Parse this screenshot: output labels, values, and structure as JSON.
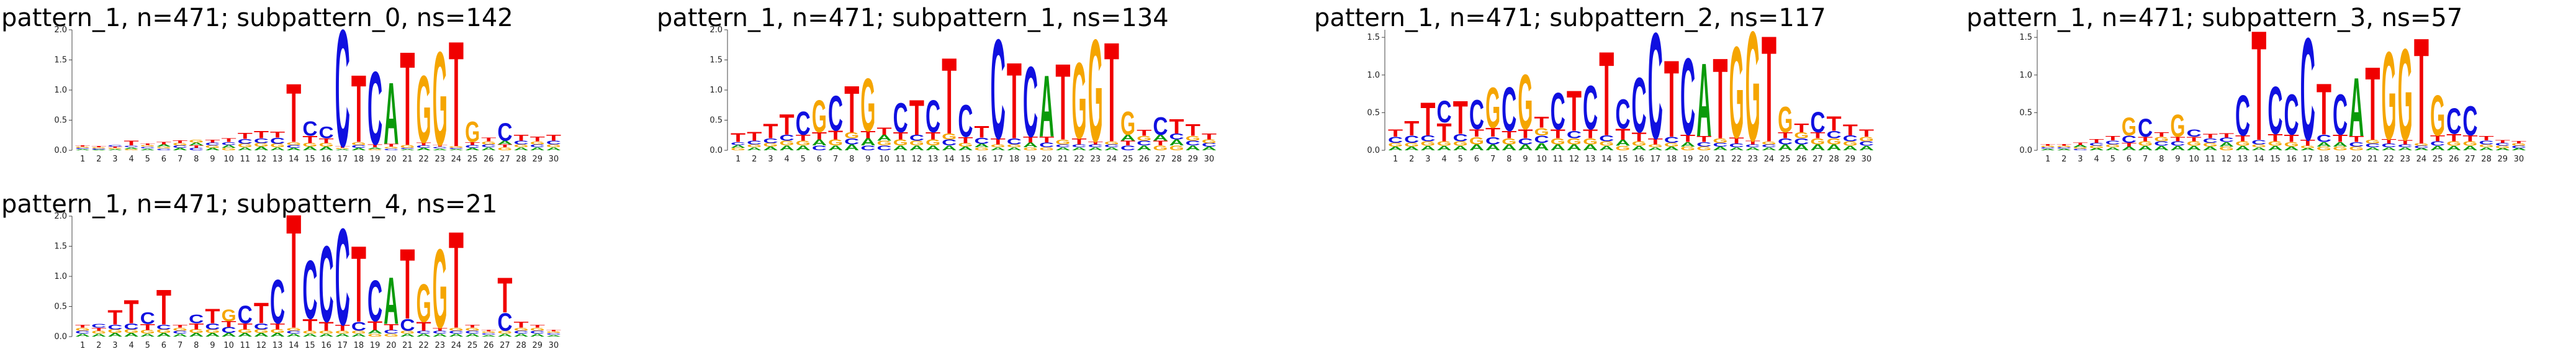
{
  "chart_data": [
    {
      "type": "logo",
      "title": "pattern_1, n=471; subpattern_0, ns=142",
      "categories": [
        "1",
        "2",
        "3",
        "4",
        "5",
        "6",
        "7",
        "8",
        "9",
        "10",
        "11",
        "12",
        "13",
        "14",
        "15",
        "16",
        "17",
        "18",
        "19",
        "20",
        "21",
        "22",
        "23",
        "24",
        "25",
        "26",
        "27",
        "28",
        "29",
        "30"
      ],
      "ylim": [
        0,
        2
      ],
      "yticks": [
        {
          "value": 0,
          "label": "0.0"
        },
        {
          "value": 0.5,
          "label": "0.5"
        },
        {
          "value": 1,
          "label": "1.0"
        },
        {
          "value": 1.5,
          "label": "1.5"
        },
        {
          "value": 2,
          "label": "2.0"
        }
      ],
      "series": [
        {
          "name": "A",
          "color": "#0a9a0a",
          "values": [
            0.02,
            0.01,
            0.02,
            0.03,
            0.03,
            0.04,
            0.04,
            0.05,
            0.04,
            0.05,
            0.05,
            0.06,
            0.05,
            0.04,
            0.06,
            0.06,
            0.02,
            0.04,
            0.03,
            1.05,
            0.02,
            0.04,
            0.03,
            0.02,
            0.04,
            0.05,
            0.06,
            0.05,
            0.05,
            0.05
          ]
        },
        {
          "name": "C",
          "color": "#1010e0",
          "values": [
            0.02,
            0.02,
            0.03,
            0.03,
            0.03,
            0.03,
            0.04,
            0.04,
            0.05,
            0.05,
            0.08,
            0.08,
            0.1,
            0.05,
            0.25,
            0.2,
            2.0,
            0.05,
            1.25,
            0.03,
            0.02,
            0.04,
            0.03,
            0.02,
            0.05,
            0.05,
            0.3,
            0.06,
            0.05,
            0.06
          ]
        },
        {
          "name": "G",
          "color": "#f5a500",
          "values": [
            0.02,
            0.02,
            0.02,
            0.02,
            0.03,
            0.03,
            0.04,
            0.05,
            0.04,
            0.04,
            0.06,
            0.06,
            0.06,
            0.05,
            0.06,
            0.06,
            0.02,
            0.05,
            0.02,
            0.03,
            0.05,
            1.15,
            1.6,
            0.03,
            0.35,
            0.05,
            0.05,
            0.05,
            0.05,
            0.05
          ]
        },
        {
          "name": "T",
          "color": "#f00000",
          "values": [
            0.02,
            0.02,
            0.02,
            0.08,
            0.03,
            0.04,
            0.05,
            0.04,
            0.05,
            0.06,
            0.1,
            0.12,
            0.1,
            1.0,
            0.12,
            0.08,
            0.03,
            1.15,
            0.05,
            0.05,
            1.6,
            0.05,
            0.03,
            1.8,
            0.05,
            0.06,
            0.05,
            0.1,
            0.08,
            0.1
          ]
        }
      ]
    },
    {
      "type": "logo",
      "title": "pattern_1, n=471; subpattern_1, ns=134",
      "categories": [
        "1",
        "2",
        "3",
        "4",
        "5",
        "6",
        "7",
        "8",
        "9",
        "10",
        "11",
        "12",
        "13",
        "14",
        "15",
        "16",
        "17",
        "18",
        "19",
        "20",
        "21",
        "22",
        "23",
        "24",
        "25",
        "26",
        "27",
        "28",
        "29",
        "30"
      ],
      "ylim": [
        0,
        2
      ],
      "yticks": [
        {
          "value": 0,
          "label": "0.0"
        },
        {
          "value": 0.5,
          "label": "0.5"
        },
        {
          "value": 1,
          "label": "1.0"
        },
        {
          "value": 1.5,
          "label": "1.5"
        },
        {
          "value": 2,
          "label": "2.0"
        }
      ],
      "series": [
        {
          "name": "A",
          "color": "#0a9a0a",
          "values": [
            0.05,
            0.05,
            0.06,
            0.08,
            0.08,
            0.1,
            0.08,
            0.1,
            0.12,
            0.1,
            0.08,
            0.08,
            0.08,
            0.08,
            0.06,
            0.06,
            0.05,
            0.05,
            0.08,
            1.05,
            0.05,
            0.05,
            0.05,
            0.05,
            0.1,
            0.08,
            0.1,
            0.1,
            0.08,
            0.06
          ]
        },
        {
          "name": "C",
          "color": "#1010e0",
          "values": [
            0.05,
            0.06,
            0.08,
            0.1,
            0.4,
            0.08,
            0.6,
            0.1,
            0.08,
            0.08,
            0.5,
            0.1,
            0.55,
            0.1,
            0.55,
            0.1,
            1.7,
            0.1,
            1.2,
            0.08,
            0.05,
            0.05,
            0.05,
            0.05,
            0.08,
            0.08,
            0.3,
            0.1,
            0.08,
            0.06
          ]
        },
        {
          "name": "G",
          "color": "#f5a500",
          "values": [
            0.04,
            0.05,
            0.06,
            0.08,
            0.08,
            0.55,
            0.1,
            0.1,
            0.9,
            0.08,
            0.1,
            0.08,
            0.1,
            0.1,
            0.06,
            0.05,
            0.05,
            0.05,
            0.05,
            0.05,
            0.08,
            1.3,
            1.75,
            0.05,
            0.4,
            0.08,
            0.08,
            0.08,
            0.08,
            0.06
          ]
        },
        {
          "name": "T",
          "color": "#f00000",
          "values": [
            0.15,
            0.15,
            0.25,
            0.35,
            0.1,
            0.12,
            0.15,
            0.8,
            0.12,
            0.12,
            0.12,
            0.6,
            0.12,
            1.3,
            0.1,
            0.2,
            0.1,
            1.3,
            0.1,
            0.1,
            1.3,
            0.1,
            0.05,
            1.7,
            0.08,
            0.1,
            0.08,
            0.25,
            0.2,
            0.1
          ]
        }
      ]
    },
    {
      "type": "logo",
      "title": "pattern_1, n=471; subpattern_2, ns=117",
      "categories": [
        "1",
        "2",
        "3",
        "4",
        "5",
        "6",
        "7",
        "8",
        "9",
        "10",
        "11",
        "12",
        "13",
        "14",
        "15",
        "16",
        "17",
        "18",
        "19",
        "20",
        "21",
        "22",
        "23",
        "24",
        "25",
        "26",
        "27",
        "28",
        "29",
        "30"
      ],
      "ylim": [
        0,
        1.6
      ],
      "yticks": [
        {
          "value": 0,
          "label": "0.0"
        },
        {
          "value": 0.5,
          "label": "0.5"
        },
        {
          "value": 1,
          "label": "1.0"
        },
        {
          "value": 1.5,
          "label": "1.5"
        }
      ],
      "series": [
        {
          "name": "A",
          "color": "#0a9a0a",
          "values": [
            0.05,
            0.05,
            0.06,
            0.06,
            0.06,
            0.08,
            0.08,
            0.08,
            0.08,
            0.1,
            0.08,
            0.08,
            0.08,
            0.06,
            0.08,
            0.06,
            0.04,
            0.05,
            0.06,
            1.0,
            0.05,
            0.04,
            0.04,
            0.04,
            0.08,
            0.08,
            0.08,
            0.08,
            0.06,
            0.06
          ]
        },
        {
          "name": "C",
          "color": "#1010e0",
          "values": [
            0.08,
            0.1,
            0.08,
            0.3,
            0.1,
            0.4,
            0.1,
            0.6,
            0.08,
            0.1,
            0.5,
            0.1,
            0.6,
            0.08,
            0.4,
            0.75,
            1.45,
            0.08,
            1.05,
            0.06,
            0.05,
            0.05,
            0.04,
            0.04,
            0.08,
            0.08,
            0.28,
            0.1,
            0.08,
            0.06
          ]
        },
        {
          "name": "G",
          "color": "#f5a500",
          "values": [
            0.05,
            0.05,
            0.06,
            0.06,
            0.06,
            0.1,
            0.55,
            0.08,
            0.75,
            0.1,
            0.08,
            0.08,
            0.08,
            0.06,
            0.06,
            0.06,
            0.04,
            0.05,
            0.05,
            0.05,
            0.06,
            1.25,
            1.5,
            0.04,
            0.35,
            0.08,
            0.08,
            0.08,
            0.06,
            0.06
          ]
        },
        {
          "name": "T",
          "color": "#f00000",
          "values": [
            0.1,
            0.2,
            0.45,
            0.25,
            0.45,
            0.1,
            0.12,
            0.1,
            0.12,
            0.15,
            0.12,
            0.55,
            0.12,
            1.15,
            0.15,
            0.12,
            0.08,
            1.05,
            0.1,
            0.08,
            1.1,
            0.08,
            0.05,
            1.45,
            0.08,
            0.12,
            0.08,
            0.2,
            0.15,
            0.1
          ]
        }
      ]
    },
    {
      "type": "logo",
      "title": "pattern_1, n=471; subpattern_3, ns=57",
      "categories": [
        "1",
        "2",
        "3",
        "4",
        "5",
        "6",
        "7",
        "8",
        "9",
        "10",
        "11",
        "12",
        "13",
        "14",
        "15",
        "16",
        "17",
        "18",
        "19",
        "20",
        "21",
        "22",
        "23",
        "24",
        "25",
        "26",
        "27",
        "28",
        "29",
        "30"
      ],
      "ylim": [
        0,
        1.6
      ],
      "yticks": [
        {
          "value": 0,
          "label": "0.0"
        },
        {
          "value": 0.5,
          "label": "0.5"
        },
        {
          "value": 1,
          "label": "1.0"
        },
        {
          "value": 1.5,
          "label": "1.5"
        }
      ],
      "series": [
        {
          "name": "A",
          "color": "#0a9a0a",
          "values": [
            0.02,
            0.02,
            0.03,
            0.03,
            0.04,
            0.05,
            0.06,
            0.06,
            0.06,
            0.06,
            0.05,
            0.06,
            0.06,
            0.04,
            0.06,
            0.05,
            0.03,
            0.06,
            0.06,
            0.8,
            0.04,
            0.04,
            0.04,
            0.03,
            0.06,
            0.06,
            0.06,
            0.04,
            0.03,
            0.03
          ]
        },
        {
          "name": "C",
          "color": "#1010e0",
          "values": [
            0.02,
            0.02,
            0.02,
            0.04,
            0.05,
            0.1,
            0.25,
            0.06,
            0.06,
            0.1,
            0.06,
            0.06,
            0.55,
            0.06,
            0.65,
            0.55,
            1.4,
            0.1,
            0.55,
            0.06,
            0.05,
            0.05,
            0.04,
            0.03,
            0.06,
            0.35,
            0.4,
            0.05,
            0.04,
            0.03
          ]
        },
        {
          "name": "G",
          "color": "#f5a500",
          "values": [
            0.02,
            0.02,
            0.02,
            0.03,
            0.04,
            0.25,
            0.06,
            0.06,
            0.3,
            0.06,
            0.05,
            0.05,
            0.06,
            0.04,
            0.06,
            0.06,
            0.03,
            0.05,
            0.05,
            0.05,
            0.05,
            1.2,
            1.25,
            0.03,
            0.55,
            0.06,
            0.06,
            0.04,
            0.03,
            0.03
          ]
        },
        {
          "name": "T",
          "color": "#f00000",
          "values": [
            0.02,
            0.02,
            0.03,
            0.05,
            0.06,
            0.05,
            0.06,
            0.06,
            0.06,
            0.06,
            0.06,
            0.06,
            0.08,
            1.5,
            0.1,
            0.1,
            0.08,
            0.7,
            0.1,
            0.08,
            1.0,
            0.06,
            0.06,
            1.45,
            0.08,
            0.1,
            0.08,
            0.06,
            0.04,
            0.03
          ]
        }
      ]
    },
    {
      "type": "logo",
      "title": "pattern_1, n=471; subpattern_4, ns=21",
      "categories": [
        "1",
        "2",
        "3",
        "4",
        "5",
        "6",
        "7",
        "8",
        "9",
        "10",
        "11",
        "12",
        "13",
        "14",
        "15",
        "16",
        "17",
        "18",
        "19",
        "20",
        "21",
        "22",
        "23",
        "24",
        "25",
        "26",
        "27",
        "28",
        "29",
        "30"
      ],
      "ylim": [
        0,
        2
      ],
      "yticks": [
        {
          "value": 0,
          "label": "0.0"
        },
        {
          "value": 0.5,
          "label": "0.5"
        },
        {
          "value": 1,
          "label": "1.0"
        },
        {
          "value": 1.5,
          "label": "1.5"
        },
        {
          "value": 2,
          "label": "2.0"
        }
      ],
      "series": [
        {
          "name": "A",
          "color": "#0a9a0a",
          "values": [
            0.05,
            0.05,
            0.06,
            0.06,
            0.05,
            0.06,
            0.05,
            0.06,
            0.06,
            0.06,
            0.06,
            0.06,
            0.06,
            0.05,
            0.05,
            0.05,
            0.05,
            0.05,
            0.06,
            0.8,
            0.05,
            0.05,
            0.05,
            0.05,
            0.05,
            0.03,
            0.05,
            0.05,
            0.05,
            0.03
          ]
        },
        {
          "name": "C",
          "color": "#1010e0",
          "values": [
            0.05,
            0.06,
            0.08,
            0.1,
            0.2,
            0.08,
            0.05,
            0.15,
            0.1,
            0.1,
            0.3,
            0.1,
            0.75,
            0.05,
            1.0,
            1.3,
            1.65,
            0.15,
            0.7,
            0.06,
            0.2,
            0.05,
            0.05,
            0.05,
            0.05,
            0.03,
            0.3,
            0.05,
            0.05,
            0.03
          ]
        },
        {
          "name": "G",
          "color": "#f5a500",
          "values": [
            0.05,
            0.05,
            0.06,
            0.06,
            0.06,
            0.06,
            0.05,
            0.06,
            0.06,
            0.2,
            0.06,
            0.06,
            0.06,
            0.05,
            0.05,
            0.05,
            0.05,
            0.05,
            0.05,
            0.05,
            0.05,
            0.65,
            1.35,
            0.05,
            0.05,
            0.03,
            0.05,
            0.05,
            0.05,
            0.03
          ]
        },
        {
          "name": "T",
          "color": "#f00000",
          "values": [
            0.05,
            0.05,
            0.25,
            0.4,
            0.1,
            0.6,
            0.05,
            0.1,
            0.25,
            0.1,
            0.1,
            0.35,
            0.1,
            1.95,
            0.2,
            0.15,
            0.1,
            1.3,
            0.15,
            0.1,
            1.2,
            0.15,
            0.05,
            1.65,
            0.05,
            0.03,
            0.6,
            0.1,
            0.05,
            0.03
          ]
        }
      ]
    }
  ]
}
